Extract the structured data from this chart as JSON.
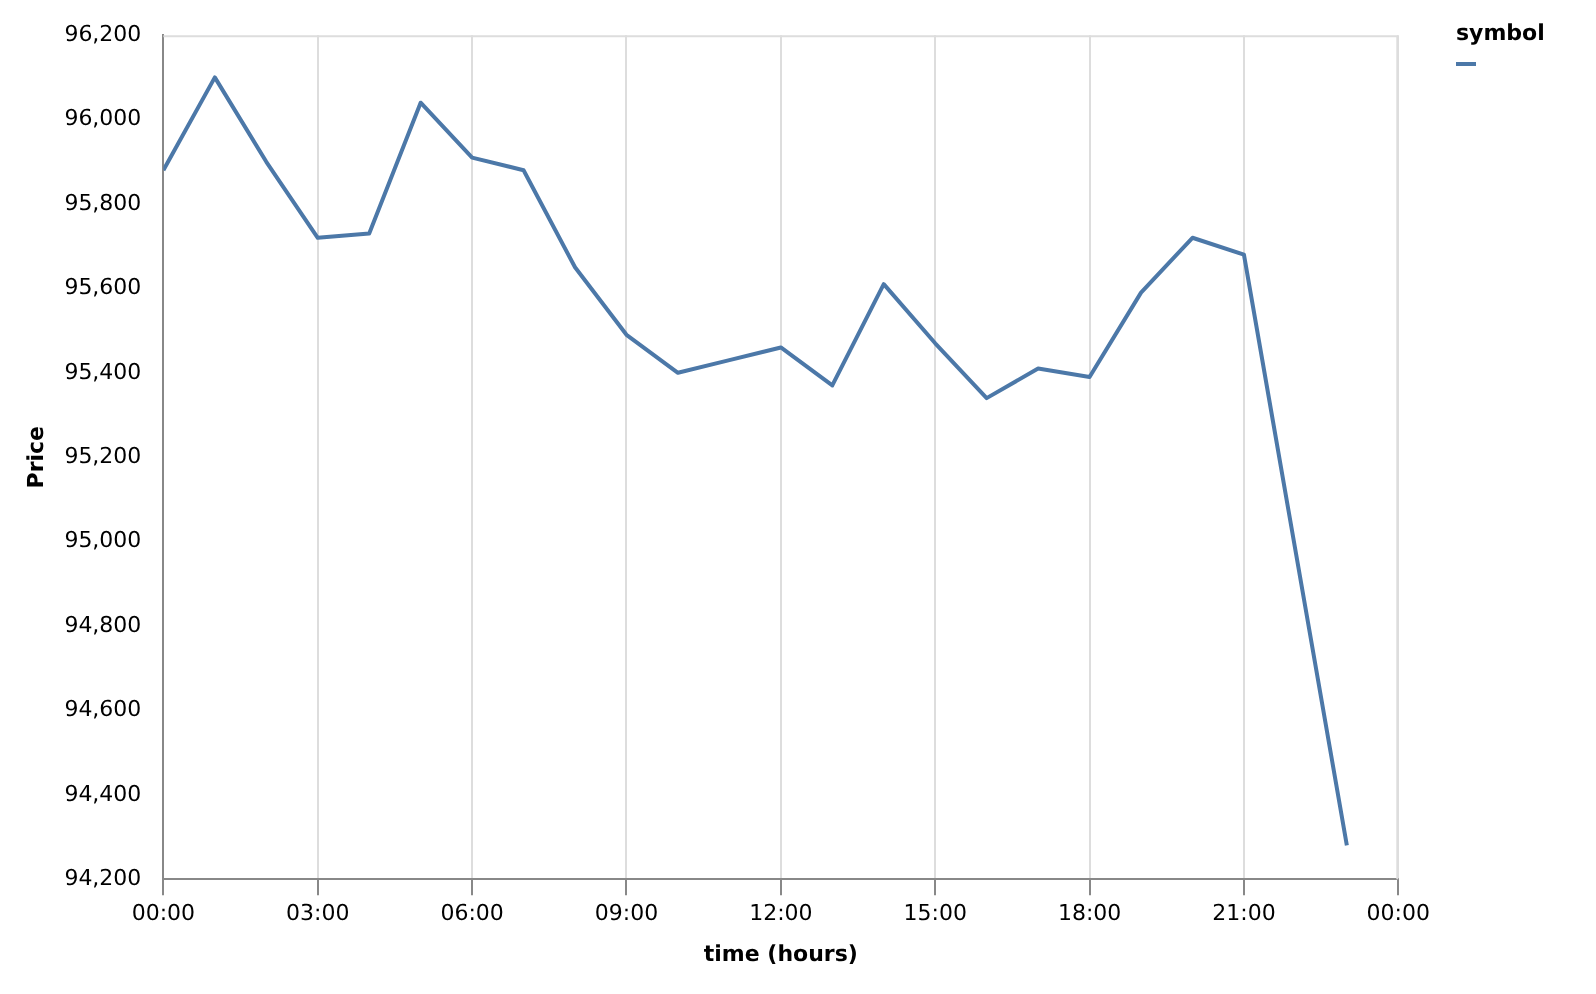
{
  "chart_data": {
    "type": "line",
    "xlabel": "time (hours)",
    "ylabel": "Price",
    "legend_title": "symbol",
    "grid": "x",
    "x": [
      0,
      1,
      2,
      3,
      4,
      5,
      6,
      7,
      8,
      9,
      10,
      11,
      12,
      13,
      14,
      15,
      16,
      17,
      18,
      19,
      20,
      21,
      23
    ],
    "series": [
      {
        "color": "#4c78a8",
        "values": [
          95880,
          96100,
          95900,
          95720,
          95730,
          96040,
          95910,
          95880,
          95650,
          95490,
          95400,
          95430,
          95460,
          95370,
          95610,
          95470,
          95340,
          95410,
          95390,
          95590,
          95720,
          95680,
          94280
        ]
      }
    ],
    "xlim": [
      0,
      24
    ],
    "xticks": [
      {
        "value": 0,
        "label": "00:00"
      },
      {
        "value": 3,
        "label": "03:00"
      },
      {
        "value": 6,
        "label": "06:00"
      },
      {
        "value": 9,
        "label": "09:00"
      },
      {
        "value": 12,
        "label": "12:00"
      },
      {
        "value": 15,
        "label": "15:00"
      },
      {
        "value": 18,
        "label": "18:00"
      },
      {
        "value": 21,
        "label": "21:00"
      },
      {
        "value": 24,
        "label": "00:00"
      }
    ],
    "ylim": [
      94200,
      96200
    ],
    "yticks": [
      {
        "value": 94200,
        "label": "94,200"
      },
      {
        "value": 94400,
        "label": "94,400"
      },
      {
        "value": 94600,
        "label": "94,600"
      },
      {
        "value": 94800,
        "label": "94,800"
      },
      {
        "value": 95000,
        "label": "95,000"
      },
      {
        "value": 95200,
        "label": "95,200"
      },
      {
        "value": 95400,
        "label": "95,400"
      },
      {
        "value": 95600,
        "label": "95,600"
      },
      {
        "value": 95800,
        "label": "95,800"
      },
      {
        "value": 96000,
        "label": "96,000"
      },
      {
        "value": 96200,
        "label": "96,200"
      }
    ]
  }
}
